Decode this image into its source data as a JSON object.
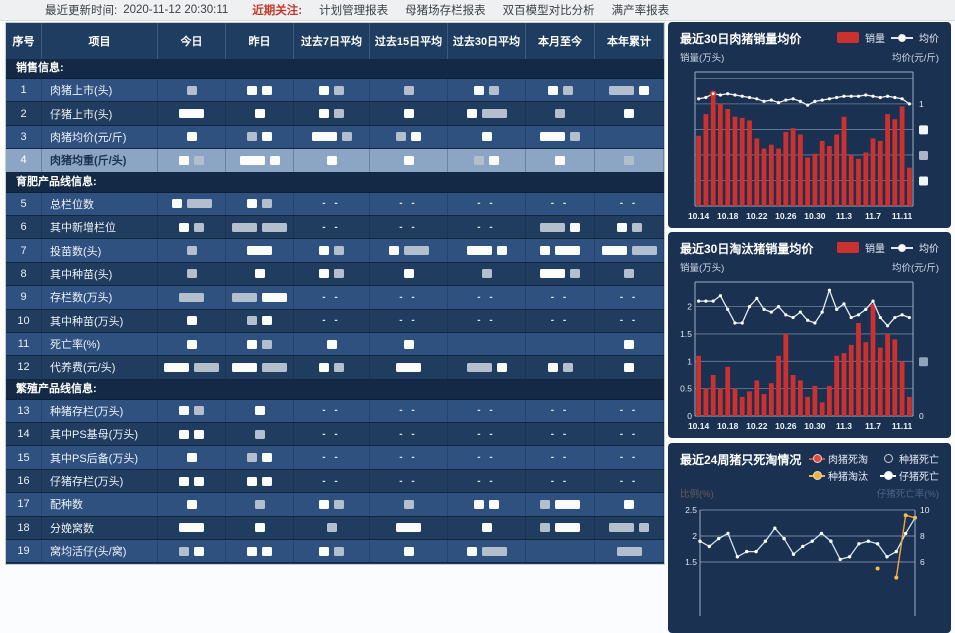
{
  "topbar": {
    "updated_label": "最近更新时间:",
    "updated_time": "2020-11-12 20:30:11",
    "focus_label": "近期关注:",
    "links": [
      "计划管理报表",
      "母猪场存栏报表",
      "双百模型对比分析",
      "满产率报表"
    ]
  },
  "table": {
    "headers": [
      "序号",
      "项目",
      "今日",
      "昨日",
      "过去7日平均",
      "过去15日平均",
      "过去30日平均",
      "本月至今",
      "本年累计"
    ],
    "selected_row_no": "4",
    "sections": [
      {
        "title": "销售信息:",
        "rows": [
          {
            "no": "1",
            "label": "肉猪上市(头)",
            "cells": [
              "g",
              "ww",
              "wg",
              "g",
              "wg",
              "wg",
              "gdw"
            ]
          },
          {
            "no": "2",
            "label": "仔猪上市(头)",
            "cells": [
              "wd",
              "w",
              "wg",
              "w",
              "wgd",
              "g",
              "w"
            ]
          },
          {
            "no": "3",
            "label": "肉猪均价(元/斤)",
            "cells": [
              "w",
              "gw",
              "wdg",
              "gw",
              "w",
              "wdg",
              ""
            ]
          },
          {
            "no": "4",
            "label": "肉猪均重(斤/头)",
            "cells": [
              "wg",
              "wdw",
              "w",
              "w",
              "gw",
              "w",
              "g"
            ]
          }
        ]
      },
      {
        "title": "育肥产品线信息:",
        "rows": [
          {
            "no": "5",
            "label": "总栏位数",
            "cells": [
              "wgd",
              "wg",
              "--",
              "--",
              "--",
              "--",
              "--"
            ]
          },
          {
            "no": "6",
            "label": "其中新增栏位",
            "cells": [
              "wg",
              "gdgd",
              "--",
              "--",
              "--",
              "gdw",
              "wg"
            ]
          },
          {
            "no": "7",
            "label": "投苗数(头)",
            "cells": [
              "g",
              "wd",
              "wg",
              "wgd",
              "wdw",
              "wwd",
              "wdgd"
            ]
          },
          {
            "no": "8",
            "label": "其中种苗(头)",
            "cells": [
              "g",
              "w",
              "wg",
              "w",
              "g",
              "wdg",
              "g"
            ]
          },
          {
            "no": "9",
            "label": "存栏数(万头)",
            "cells": [
              "gd",
              "gdwd",
              "--",
              "--",
              "--",
              "--",
              "--"
            ]
          },
          {
            "no": "10",
            "label": "其中种苗(万头)",
            "cells": [
              "w",
              "gw",
              "--",
              "--",
              "--",
              "--",
              "--"
            ]
          },
          {
            "no": "11",
            "label": "死亡率(%)",
            "cells": [
              "w",
              "wg",
              "w",
              "w",
              "",
              "",
              "w"
            ]
          },
          {
            "no": "12",
            "label": "代养费(元/头)",
            "cells": [
              "wdgd",
              "wdgd",
              "wg",
              "wd",
              "gdw",
              "wg",
              "w"
            ]
          }
        ]
      },
      {
        "title": "繁殖产品线信息:",
        "rows": [
          {
            "no": "13",
            "label": "种猪存栏(万头)",
            "cells": [
              "wg",
              "w",
              "--",
              "--",
              "--",
              "--",
              "--"
            ]
          },
          {
            "no": "14",
            "label": "其中PS基母(万头)",
            "cells": [
              "ww",
              "g",
              "--",
              "--",
              "--",
              "--",
              "--"
            ]
          },
          {
            "no": "15",
            "label": "其中PS后备(万头)",
            "cells": [
              "w",
              "gw",
              "--",
              "--",
              "--",
              "--",
              "--"
            ]
          },
          {
            "no": "16",
            "label": "仔猪存栏(万头)",
            "cells": [
              "ww",
              "ww",
              "--",
              "--",
              "--",
              "--",
              "--"
            ]
          },
          {
            "no": "17",
            "label": "配种数",
            "cells": [
              "w",
              "g",
              "wg",
              "g",
              "ww",
              "gwd",
              "w"
            ]
          },
          {
            "no": "18",
            "label": "分娩窝数",
            "cells": [
              "wd",
              "w",
              "g",
              "wd",
              "w",
              "gwd",
              "gdg"
            ]
          },
          {
            "no": "19",
            "label": "窝均活仔(头/窝)",
            "cells": [
              "gw",
              "ww",
              "wg",
              "w",
              "wgd",
              "",
              "gd"
            ]
          }
        ]
      }
    ]
  },
  "chart_data": [
    {
      "type": "bar+line",
      "title": "最近30日肉猪销量均价",
      "legend": [
        "销量",
        "均价"
      ],
      "y_left_label": "销量(万头)",
      "y_right_label": "均价(元/斤)",
      "x_tick_labels": [
        "10.14",
        "10.18",
        "10.22",
        "10.26",
        "10.30",
        "11.3",
        "11.7",
        "11.11"
      ],
      "ylim": [
        0,
        105
      ],
      "bars": [
        55,
        72,
        88,
        80,
        76,
        70,
        69,
        67,
        53,
        45,
        48,
        45,
        58,
        61,
        56,
        38,
        41,
        51,
        47,
        56,
        70,
        40,
        37,
        42,
        53,
        51,
        72,
        68,
        78,
        30
      ],
      "line": [
        84,
        85,
        88,
        87,
        88,
        87,
        86,
        85,
        84,
        82,
        83,
        81,
        83,
        84,
        82,
        79,
        82,
        83,
        84,
        85,
        86,
        86,
        86,
        87,
        86,
        85,
        86,
        85,
        84,
        80
      ],
      "highlight_index": 2,
      "grid": [
        {
          "v": 100,
          "r": ""
        },
        {
          "v": 80,
          "r": "1"
        },
        {
          "v": 60,
          "r": "#"
        },
        {
          "v": 40,
          "r": "#g"
        },
        {
          "v": 20,
          "r": "#"
        },
        {
          "v": 0,
          "r": ""
        }
      ],
      "bar_color": "#cb312e",
      "line_color": "#e2ebf4"
    },
    {
      "type": "bar+line",
      "title": "最近30日淘汰猪销量均价",
      "legend": [
        "销量",
        "均价"
      ],
      "y_left_label": "销量(万头)",
      "y_right_label": "均价(元/斤)",
      "x_tick_labels": [
        "10.14",
        "10.18",
        "10.22",
        "10.26",
        "10.30",
        "11.3",
        "11.7",
        "11.11"
      ],
      "ylim": [
        0,
        2.45
      ],
      "bars": [
        1.1,
        0.5,
        0.75,
        0.5,
        0.9,
        0.5,
        0.35,
        0.45,
        0.65,
        0.4,
        0.6,
        1.1,
        1.5,
        0.75,
        0.65,
        0.35,
        0.55,
        0.25,
        0.55,
        1.1,
        1.15,
        1.3,
        1.7,
        1.35,
        2.05,
        1.25,
        1.5,
        1.4,
        1.0,
        0.35
      ],
      "line": [
        2.1,
        2.1,
        2.1,
        2.2,
        1.95,
        1.7,
        1.7,
        2.0,
        2.15,
        1.95,
        1.9,
        2.0,
        1.85,
        1.8,
        1.9,
        1.75,
        1.7,
        1.9,
        2.3,
        1.95,
        2.05,
        1.8,
        1.85,
        1.95,
        2.1,
        1.8,
        1.65,
        1.8,
        1.85,
        1.8
      ],
      "highlight_index": -1,
      "grid": [
        {
          "v": 2,
          "l": "2"
        },
        {
          "v": 1.5,
          "l": "1.5"
        },
        {
          "v": 1,
          "l": "1",
          "r": "#b"
        },
        {
          "v": 0.5,
          "l": "0.5"
        },
        {
          "v": 0,
          "l": "0",
          "r": "0"
        }
      ],
      "bar_color": "#cb312e",
      "line_color": "#e2ebf4"
    },
    {
      "type": "line",
      "title": "最近24周猪只死淘情况",
      "legend": [
        {
          "label": "肉猪死淘",
          "color": "#e14b39"
        },
        {
          "label": "种猪死亡",
          "color": "#20344f"
        },
        {
          "label": "种猪淘汰",
          "color": "#f0b23c"
        },
        {
          "label": "仔猪死亡",
          "color": "#ffffff"
        }
      ],
      "y_left_label": "比例(%)",
      "y_right_label": "仔猪死亡率(%)",
      "left_ticks": [
        "2.5",
        "2",
        "1.5"
      ],
      "right_ticks": [
        "10",
        "8",
        "6"
      ],
      "piglet_death_series": [
        1.9,
        1.8,
        1.95,
        2.05,
        1.6,
        1.7,
        1.7,
        1.9,
        2.15,
        1.95,
        1.65,
        1.8,
        1.9,
        2.05,
        1.9,
        1.55,
        1.6,
        1.85,
        1.9,
        1.85,
        1.6,
        1.7,
        2.05,
        2.35
      ],
      "sow_cull_series_right_axis": [
        null,
        null,
        null,
        null,
        null,
        null,
        null,
        null,
        null,
        null,
        null,
        null,
        null,
        null,
        null,
        null,
        null,
        null,
        null,
        5.5,
        null,
        4.8,
        9.6,
        9.4
      ]
    }
  ],
  "colors": {
    "bar_red": "#cb312e",
    "panel_navy": "#1b3152",
    "row_blue": "#2f5180",
    "row_dark": "#203c5e",
    "selected_row": "#8da5c4",
    "focus_red": "#c9372c",
    "cull_orange": "#f0b23c"
  }
}
